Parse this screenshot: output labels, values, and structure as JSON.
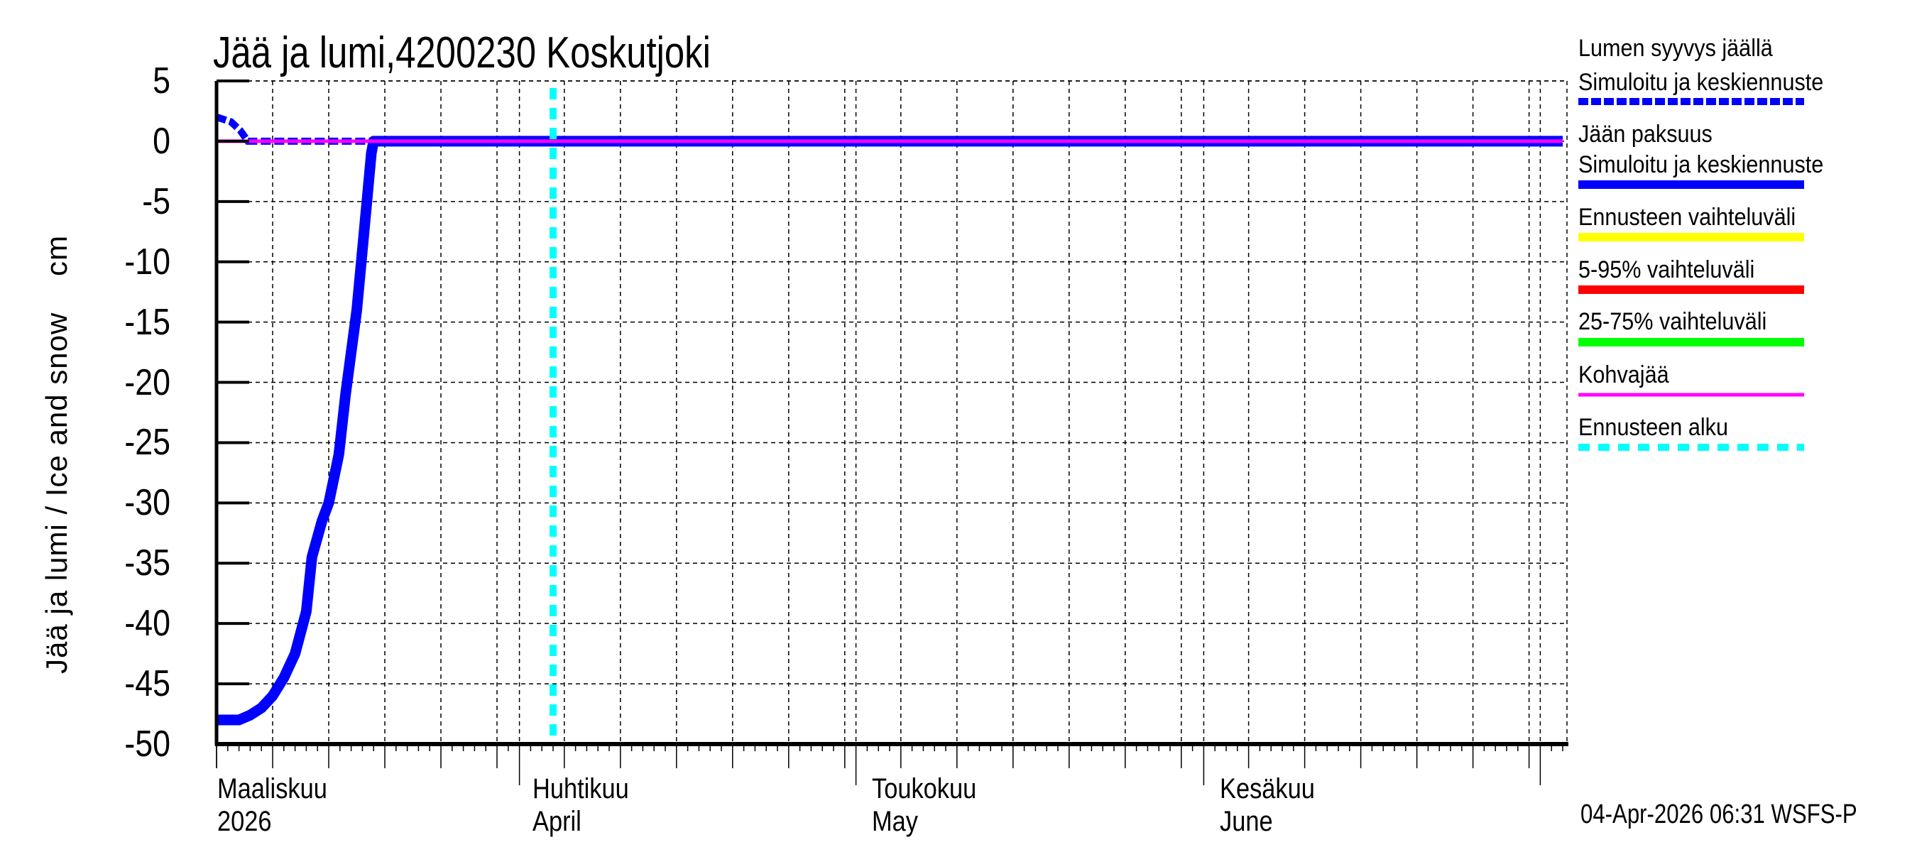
{
  "title": "Jää ja lumi,4200230 Koskutjoki",
  "y_axis_label": "Jää ja lumi / Ice and snow    cm",
  "timestamp": "04-Apr-2026 06:31 WSFS-P",
  "x_month_labels": [
    {
      "line1": "Maaliskuu",
      "line2": "2026",
      "date": "2026-03-01"
    },
    {
      "line1": "Huhtikuu",
      "line2": "April",
      "date": "2026-04-01"
    },
    {
      "line1": "Toukokuu",
      "line2": "May",
      "date": "2026-05-01"
    },
    {
      "line1": "Kesäkuu",
      "line2": "June",
      "date": "2026-06-01"
    }
  ],
  "legend": [
    {
      "label1": "Lumen syyvys jäällä",
      "label2": "Simuloitu ja keskiennuste",
      "color": "#0000ff",
      "style": "dashed-thick"
    },
    {
      "label1": "Jään paksuus",
      "label2": "Simuloitu ja keskiennuste",
      "color": "#0000ff",
      "style": "solid-thick"
    },
    {
      "label1": "Ennusteen vaihteluväli",
      "color": "#ffff00",
      "style": "solid-thick"
    },
    {
      "label1": "5-95% vaihteluväli",
      "color": "#ff0000",
      "style": "solid-thick"
    },
    {
      "label1": "25-75% vaihteluväli",
      "color": "#00ff00",
      "style": "solid-thick"
    },
    {
      "label1": "Kohvajää",
      "color": "#ff00ff",
      "style": "solid-thin"
    },
    {
      "label1": "Ennusteen alku",
      "color": "#00ffff",
      "style": "dashed-thick"
    }
  ],
  "colors": {
    "ice": "#0000ff",
    "snow": "#0000ff",
    "slush_ice": "#ff00ff",
    "forecast_start": "#00ffff",
    "grid": "#000000",
    "axis": "#000000"
  },
  "chart_data": {
    "type": "line",
    "title": "Jää ja lumi,4200230 Koskutjoki",
    "xlabel": "",
    "ylabel": "Jää ja lumi / Ice and snow cm",
    "x_range": [
      "2026-03-05",
      "2026-07-03"
    ],
    "ylim": [
      -50,
      5
    ],
    "yticks": [
      5,
      0,
      -5,
      -10,
      -15,
      -20,
      -25,
      -30,
      -35,
      -40,
      -45,
      -50
    ],
    "grid": true,
    "legend_position": "right",
    "forecast_start": "2026-04-04",
    "series": [
      {
        "name": "Jään paksuus - Simuloitu ja keskiennuste",
        "color": "#0000ff",
        "style": "solid",
        "points": [
          [
            "2026-03-05",
            -48.0
          ],
          [
            "2026-03-07",
            -48.0
          ],
          [
            "2026-03-08",
            -47.6
          ],
          [
            "2026-03-09",
            -47.0
          ],
          [
            "2026-03-10",
            -46.0
          ],
          [
            "2026-03-11",
            -44.5
          ],
          [
            "2026-03-12",
            -42.5
          ],
          [
            "2026-03-13",
            -39.0
          ],
          [
            "2026-03-13.5",
            -34.5
          ],
          [
            "2026-03-14.4",
            -31.5
          ],
          [
            "2026-03-15",
            -30.0
          ],
          [
            "2026-03-15.9",
            -26.0
          ],
          [
            "2026-03-16.5",
            -21.0
          ],
          [
            "2026-03-17.5",
            -14.0
          ],
          [
            "2026-03-18.2",
            -7.0
          ],
          [
            "2026-03-18.8",
            -1.0
          ],
          [
            "2026-03-19",
            0.0
          ],
          [
            "2026-07-03",
            0.0
          ]
        ]
      },
      {
        "name": "Lumen syyvys jäällä - Simuloitu ja keskiennuste",
        "color": "#0000ff",
        "style": "dashed",
        "points": [
          [
            "2026-03-05",
            2.0
          ],
          [
            "2026-03-06.3",
            1.6
          ],
          [
            "2026-03-07.1",
            0.9
          ],
          [
            "2026-03-07.8",
            0.0
          ],
          [
            "2026-03-19",
            0.0
          ]
        ]
      },
      {
        "name": "Kohvajää",
        "color": "#ff00ff",
        "style": "solid",
        "points": [
          [
            "2026-03-05",
            0.0
          ],
          [
            "2026-07-03",
            0.0
          ]
        ]
      },
      {
        "name": "Ennusteen vaihteluväli",
        "color": "#ffff00",
        "points": []
      },
      {
        "name": "5-95% vaihteluväli",
        "color": "#ff0000",
        "points": []
      },
      {
        "name": "25-75% vaihteluväli",
        "color": "#00ff00",
        "points": []
      }
    ]
  }
}
